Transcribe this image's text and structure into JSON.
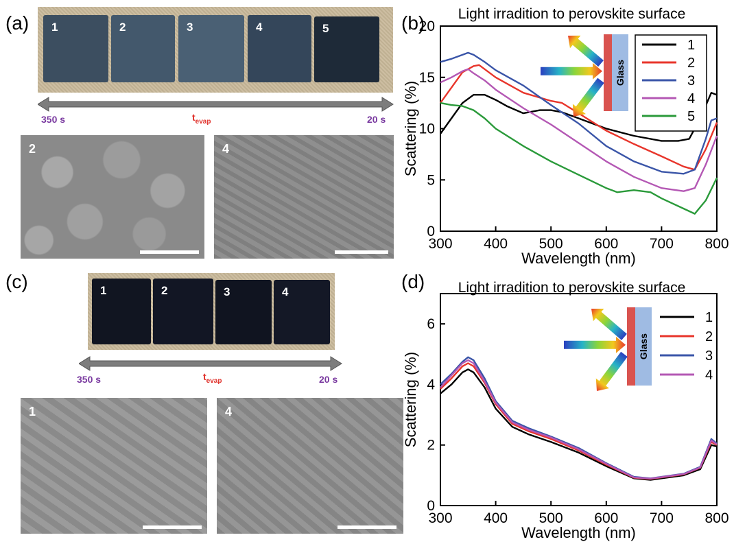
{
  "panels": {
    "a": {
      "label": "(a)"
    },
    "b": {
      "label": "(b)"
    },
    "c": {
      "label": "(c)"
    },
    "d": {
      "label": "(d)"
    }
  },
  "photo_a": {
    "samples": [
      "1",
      "2",
      "3",
      "4",
      "5"
    ],
    "arrow_left": "350 s",
    "arrow_right": "20 s",
    "t_label": "t",
    "t_sub": "evap",
    "sem_labels": [
      "2",
      "4"
    ]
  },
  "photo_c": {
    "samples": [
      "1",
      "2",
      "3",
      "4"
    ],
    "arrow_left": "350 s",
    "arrow_right": "20 s",
    "t_label": "t",
    "t_sub": "evap",
    "sem_labels": [
      "1",
      "4"
    ]
  },
  "colors": {
    "s1": "#000000",
    "s2": "#e8352b",
    "s3": "#3a55a8",
    "s4": "#b458b4",
    "s5": "#2a9a3a",
    "arrow_purple": "#7a3aa0",
    "arrow_red": "#e0302a"
  },
  "chart_data": [
    {
      "panel": "b",
      "type": "line",
      "title": "Light irradition to perovskite surface",
      "xlabel": "Wavelength (nm)",
      "ylabel": "Scattering (%)",
      "xlim": [
        300,
        800
      ],
      "ylim": [
        0,
        20
      ],
      "xticks": [
        300,
        400,
        500,
        600,
        700,
        800
      ],
      "yticks": [
        0,
        5,
        10,
        15,
        20
      ],
      "legend_position": "top-right",
      "inset_label": "Glass",
      "series": [
        {
          "name": "1",
          "color": "#000000",
          "x": [
            300,
            320,
            340,
            360,
            380,
            400,
            420,
            450,
            480,
            500,
            520,
            550,
            600,
            650,
            700,
            730,
            750,
            770,
            790,
            800
          ],
          "y": [
            9.5,
            11.0,
            12.5,
            13.3,
            13.3,
            12.8,
            12.2,
            11.5,
            11.8,
            11.8,
            11.6,
            11.0,
            10.0,
            9.3,
            8.8,
            8.8,
            9.0,
            11.0,
            13.5,
            13.3
          ]
        },
        {
          "name": "2",
          "color": "#e8352b",
          "x": [
            300,
            320,
            340,
            360,
            370,
            380,
            400,
            450,
            500,
            520,
            550,
            600,
            650,
            700,
            740,
            760,
            780,
            800
          ],
          "y": [
            12.5,
            14.0,
            15.5,
            16.1,
            16.2,
            15.8,
            15.0,
            13.5,
            12.7,
            12.5,
            11.5,
            9.8,
            8.5,
            7.3,
            6.3,
            6.0,
            8.0,
            10.6
          ]
        },
        {
          "name": "3",
          "color": "#3a55a8",
          "x": [
            300,
            320,
            340,
            350,
            360,
            380,
            400,
            450,
            500,
            550,
            600,
            650,
            700,
            740,
            760,
            780,
            790,
            800
          ],
          "y": [
            16.5,
            16.8,
            17.2,
            17.4,
            17.2,
            16.5,
            15.7,
            14.2,
            12.3,
            10.5,
            8.3,
            6.8,
            5.8,
            5.6,
            6.0,
            9.0,
            10.8,
            11.0
          ]
        },
        {
          "name": "4",
          "color": "#b458b4",
          "x": [
            300,
            320,
            340,
            350,
            360,
            380,
            400,
            450,
            500,
            550,
            600,
            650,
            700,
            740,
            760,
            780,
            800
          ],
          "y": [
            14.5,
            15.0,
            15.6,
            15.8,
            15.4,
            14.7,
            13.8,
            12.0,
            10.4,
            8.6,
            6.8,
            5.3,
            4.2,
            3.9,
            4.2,
            6.5,
            9.3
          ]
        },
        {
          "name": "5",
          "color": "#2a9a3a",
          "x": [
            300,
            320,
            340,
            360,
            380,
            400,
            450,
            500,
            550,
            600,
            620,
            650,
            680,
            700,
            740,
            760,
            780,
            800
          ],
          "y": [
            12.5,
            12.3,
            12.2,
            11.8,
            11.0,
            10.0,
            8.3,
            6.8,
            5.5,
            4.2,
            3.8,
            4.0,
            3.8,
            3.2,
            2.2,
            1.7,
            3.0,
            5.2
          ]
        }
      ]
    },
    {
      "panel": "d",
      "type": "line",
      "title": "Light irradition to perovskite surface",
      "xlabel": "Wavelength (nm)",
      "ylabel": "Scattering (%)",
      "xlim": [
        300,
        800
      ],
      "ylim": [
        0,
        7
      ],
      "xticks": [
        300,
        400,
        500,
        600,
        700,
        800
      ],
      "yticks": [
        0,
        2,
        4,
        6
      ],
      "legend_position": "top-right",
      "inset_label": "Glass",
      "series": [
        {
          "name": "1",
          "color": "#000000",
          "x": [
            300,
            320,
            340,
            350,
            360,
            380,
            400,
            430,
            460,
            500,
            550,
            600,
            650,
            680,
            700,
            740,
            770,
            790,
            800
          ],
          "y": [
            3.7,
            4.0,
            4.4,
            4.5,
            4.4,
            3.9,
            3.2,
            2.6,
            2.35,
            2.1,
            1.75,
            1.3,
            0.9,
            0.85,
            0.9,
            1.0,
            1.2,
            2.0,
            1.95
          ]
        },
        {
          "name": "2",
          "color": "#e8352b",
          "x": [
            300,
            320,
            340,
            350,
            360,
            380,
            400,
            430,
            460,
            500,
            550,
            600,
            650,
            680,
            700,
            740,
            770,
            790,
            800
          ],
          "y": [
            3.85,
            4.2,
            4.6,
            4.7,
            4.6,
            4.05,
            3.35,
            2.7,
            2.45,
            2.2,
            1.82,
            1.35,
            0.92,
            0.88,
            0.93,
            1.03,
            1.25,
            2.1,
            2.0
          ]
        },
        {
          "name": "3",
          "color": "#3a55a8",
          "x": [
            300,
            320,
            340,
            350,
            360,
            380,
            400,
            430,
            460,
            500,
            550,
            600,
            650,
            680,
            700,
            740,
            770,
            790,
            800
          ],
          "y": [
            4.0,
            4.35,
            4.75,
            4.9,
            4.8,
            4.2,
            3.45,
            2.8,
            2.55,
            2.28,
            1.9,
            1.4,
            0.95,
            0.9,
            0.95,
            1.05,
            1.28,
            2.2,
            2.05
          ]
        },
        {
          "name": "4",
          "color": "#b458b4",
          "x": [
            300,
            320,
            340,
            350,
            360,
            380,
            400,
            430,
            460,
            500,
            550,
            600,
            650,
            680,
            700,
            740,
            770,
            790,
            800
          ],
          "y": [
            3.9,
            4.3,
            4.7,
            4.8,
            4.7,
            4.1,
            3.4,
            2.75,
            2.5,
            2.25,
            1.86,
            1.38,
            0.93,
            0.89,
            0.94,
            1.04,
            1.26,
            2.15,
            2.02
          ]
        }
      ]
    }
  ]
}
